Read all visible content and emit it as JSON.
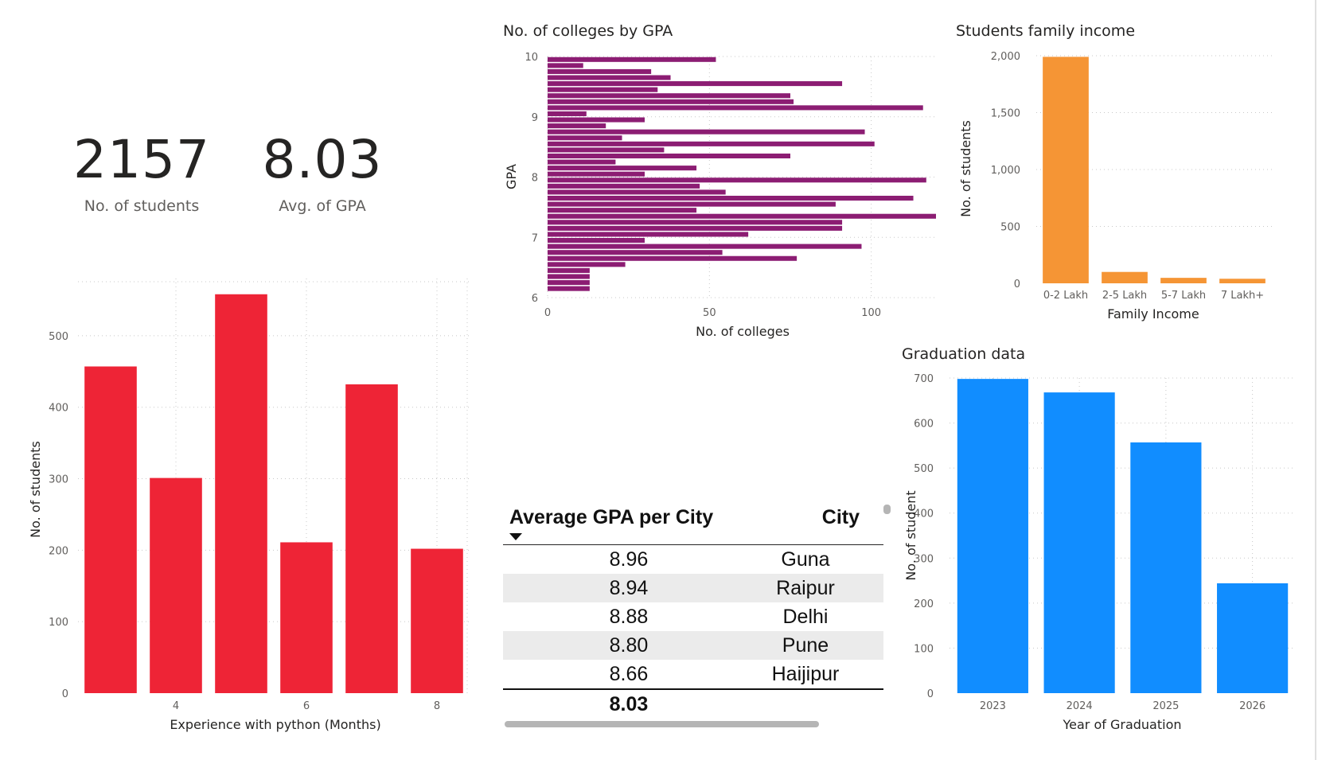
{
  "kpis": [
    {
      "value": "2157",
      "label": "No. of students"
    },
    {
      "value": "8.03",
      "label": "Avg. of GPA"
    }
  ],
  "colors": {
    "python": "#ee2436",
    "colleges": "#8c1d73",
    "income": "#f59535",
    "graduation": "#118dff"
  },
  "python_chart": {
    "xlabel": "Experience with python (Months)",
    "ylabel": "No. of students"
  },
  "colleges_chart": {
    "title": "No. of colleges by GPA",
    "xlabel": "No. of colleges",
    "ylabel": "GPA"
  },
  "income_chart": {
    "title": "Students family income",
    "xlabel": "Family Income",
    "ylabel": "No. of students"
  },
  "graduation_chart": {
    "title": "Graduation data",
    "xlabel": "Year of Graduation",
    "ylabel": "No. of student"
  },
  "gpa_table": {
    "headers": [
      "Average GPA per City",
      "City"
    ],
    "rows": [
      {
        "gpa": "8.96",
        "city": "Guna"
      },
      {
        "gpa": "8.94",
        "city": "Raipur"
      },
      {
        "gpa": "8.88",
        "city": "Delhi"
      },
      {
        "gpa": "8.80",
        "city": "Pune"
      },
      {
        "gpa": "8.66",
        "city": "Haijipur"
      }
    ],
    "total": "8.03"
  },
  "chart_data": [
    {
      "type": "bar",
      "id": "python",
      "x": [
        3,
        4,
        5,
        6,
        7,
        8
      ],
      "values": [
        457,
        301,
        558,
        211,
        432,
        202
      ],
      "xticks": [
        4,
        6,
        8
      ],
      "yticks": [
        0,
        100,
        200,
        300,
        400,
        500
      ],
      "ylim": [
        0,
        580
      ],
      "xlabel": "Experience with python (Months)",
      "ylabel": "No. of students",
      "grid": true
    },
    {
      "type": "bar",
      "orientation": "horizontal",
      "id": "colleges",
      "title": "No. of colleges by GPA",
      "y": [
        9.95,
        9.85,
        9.75,
        9.65,
        9.55,
        9.45,
        9.35,
        9.25,
        9.15,
        9.05,
        8.95,
        8.85,
        8.75,
        8.65,
        8.55,
        8.45,
        8.35,
        8.25,
        8.15,
        8.05,
        7.95,
        7.85,
        7.75,
        7.65,
        7.55,
        7.45,
        7.35,
        7.25,
        7.15,
        7.05,
        6.95,
        6.85,
        6.75,
        6.65,
        6.55,
        6.45,
        6.35,
        6.25,
        6.15
      ],
      "values": [
        52,
        11,
        32,
        38,
        91,
        34,
        75,
        76,
        116,
        12,
        30,
        18,
        98,
        23,
        101,
        36,
        75,
        21,
        46,
        30,
        117,
        47,
        55,
        113,
        89,
        46,
        120,
        91,
        91,
        62,
        30,
        97,
        54,
        77,
        24,
        13,
        13,
        13,
        13
      ],
      "xticks": [
        0,
        50,
        100
      ],
      "yticks": [
        6,
        7,
        8,
        9,
        10
      ],
      "xlim": [
        0,
        120
      ],
      "ylim": [
        6,
        10
      ],
      "xlabel": "No. of colleges",
      "ylabel": "GPA",
      "grid": true
    },
    {
      "type": "bar",
      "id": "income",
      "title": "Students family income",
      "categories": [
        "0-2 Lakh",
        "2-5 Lakh",
        "5-7 Lakh",
        "7 Lakh+"
      ],
      "values": [
        1990,
        100,
        48,
        40
      ],
      "yticks": [
        0,
        500,
        1000,
        1500,
        2000
      ],
      "ytick_labels": [
        "0",
        "500",
        "1,000",
        "1,500",
        "2,000"
      ],
      "ylim": [
        0,
        2000
      ],
      "xlabel": "Family Income",
      "ylabel": "No. of students",
      "grid": true
    },
    {
      "type": "bar",
      "id": "graduation",
      "title": "Graduation data",
      "categories": [
        "2023",
        "2024",
        "2025",
        "2026"
      ],
      "values": [
        698,
        668,
        557,
        244
      ],
      "yticks": [
        0,
        100,
        200,
        300,
        400,
        500,
        600,
        700
      ],
      "ylim": [
        0,
        700
      ],
      "xlabel": "Year of Graduation",
      "ylabel": "No. of student",
      "grid": true
    }
  ]
}
